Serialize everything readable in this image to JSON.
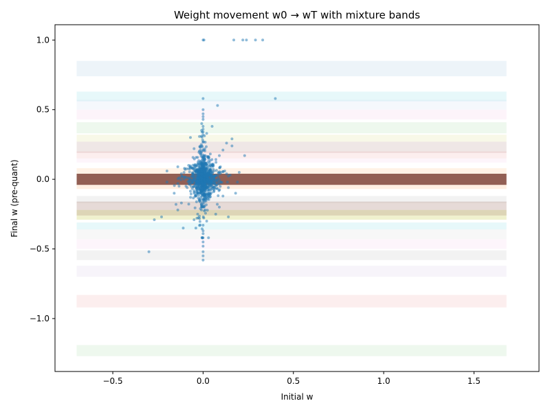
{
  "chart_data": {
    "type": "scatter",
    "title": "Weight movement w0 → wT with mixture bands",
    "xlabel": "Initial w",
    "ylabel": "Final w (pre-quant)",
    "xlim": [
      -0.82,
      1.86
    ],
    "ylim": [
      -1.38,
      1.11
    ],
    "xticks": [
      -0.5,
      0.0,
      0.5,
      1.0,
      1.5
    ],
    "yticks": [
      -1.0,
      -0.5,
      0.0,
      0.5,
      1.0
    ],
    "xtick_labels": [
      "−0.5",
      "0.0",
      "0.5",
      "1.0",
      "1.5"
    ],
    "ytick_labels": [
      "−1.0",
      "−0.5",
      "0.0",
      "0.5",
      "1.0"
    ],
    "grid": false,
    "point_color": "#1f77b4",
    "band_x_range": [
      -0.7,
      1.68
    ],
    "bands": [
      {
        "y0": 0.74,
        "y1": 0.85,
        "color": "#1f77b4",
        "alpha": 0.08
      },
      {
        "y0": 0.56,
        "y1": 0.63,
        "color": "#17becf",
        "alpha": 0.1
      },
      {
        "y0": 0.5,
        "y1": 0.57,
        "color": "#aec7e8",
        "alpha": 0.12
      },
      {
        "y0": 0.43,
        "y1": 0.5,
        "color": "#e377c2",
        "alpha": 0.08
      },
      {
        "y0": 0.33,
        "y1": 0.41,
        "color": "#2ca02c",
        "alpha": 0.08
      },
      {
        "y0": 0.27,
        "y1": 0.32,
        "color": "#bcbd22",
        "alpha": 0.1
      },
      {
        "y0": 0.19,
        "y1": 0.27,
        "color": "#8c564b",
        "alpha": 0.14
      },
      {
        "y0": 0.15,
        "y1": 0.2,
        "color": "#d62728",
        "alpha": 0.08
      },
      {
        "y0": 0.12,
        "y1": 0.15,
        "color": "#e377c2",
        "alpha": 0.07
      },
      {
        "y0": 0.04,
        "y1": 0.08,
        "color": "#ff7f0e",
        "alpha": 0.1
      },
      {
        "y0": -0.04,
        "y1": 0.04,
        "color": "#8c564b",
        "alpha": 0.95
      },
      {
        "y0": -0.07,
        "y1": -0.04,
        "color": "#ff7f0e",
        "alpha": 0.12
      },
      {
        "y0": -0.17,
        "y1": -0.12,
        "color": "#7f7f7f",
        "alpha": 0.1
      },
      {
        "y0": -0.22,
        "y1": -0.16,
        "color": "#8c564b",
        "alpha": 0.22
      },
      {
        "y0": -0.29,
        "y1": -0.22,
        "color": "#bcbd22",
        "alpha": 0.22
      },
      {
        "y0": -0.26,
        "y1": -0.22,
        "color": "#8c564b",
        "alpha": 0.18
      },
      {
        "y0": -0.36,
        "y1": -0.31,
        "color": "#17becf",
        "alpha": 0.1
      },
      {
        "y0": -0.43,
        "y1": -0.36,
        "color": "#7f7f7f",
        "alpha": 0.06
      },
      {
        "y0": -0.5,
        "y1": -0.43,
        "color": "#e377c2",
        "alpha": 0.07
      },
      {
        "y0": -0.58,
        "y1": -0.51,
        "color": "#7f7f7f",
        "alpha": 0.1
      },
      {
        "y0": -0.7,
        "y1": -0.62,
        "color": "#9467bd",
        "alpha": 0.07
      },
      {
        "y0": -0.92,
        "y1": -0.83,
        "color": "#d62728",
        "alpha": 0.08
      },
      {
        "y0": -1.27,
        "y1": -1.19,
        "color": "#2ca02c",
        "alpha": 0.08
      }
    ],
    "points": [
      [
        0.0,
        1.0
      ],
      [
        0.005,
        1.0
      ],
      [
        0.17,
        1.0
      ],
      [
        0.22,
        1.0
      ],
      [
        0.24,
        1.0
      ],
      [
        0.29,
        1.0
      ],
      [
        0.33,
        1.0
      ],
      [
        0.4,
        0.58
      ],
      [
        0.0,
        0.58
      ],
      [
        0.08,
        0.53
      ],
      [
        0.0,
        0.5
      ],
      [
        0.0,
        0.47
      ],
      [
        0.0,
        0.45
      ],
      [
        0.0,
        0.43
      ],
      [
        0.05,
        0.38
      ],
      [
        0.0,
        0.38
      ],
      [
        0.0,
        0.36
      ],
      [
        0.0,
        0.34
      ],
      [
        0.0,
        0.32
      ],
      [
        0.16,
        0.29
      ],
      [
        0.13,
        0.26
      ],
      [
        0.16,
        0.24
      ],
      [
        0.23,
        0.17
      ],
      [
        0.11,
        0.21
      ],
      [
        0.09,
        0.17
      ],
      [
        -0.07,
        0.3
      ],
      [
        -0.05,
        0.22
      ],
      [
        -0.08,
        0.1
      ],
      [
        -0.14,
        0.09
      ],
      [
        -0.2,
        0.06
      ],
      [
        -0.12,
        0.04
      ],
      [
        0.12,
        0.06
      ],
      [
        0.2,
        0.05
      ],
      [
        0.15,
        0.03
      ],
      [
        0.19,
        -0.02
      ],
      [
        0.14,
        -0.06
      ],
      [
        0.18,
        -0.1
      ],
      [
        0.11,
        -0.12
      ],
      [
        0.09,
        -0.2
      ],
      [
        0.07,
        -0.25
      ],
      [
        0.14,
        -0.27
      ],
      [
        -0.12,
        -0.17
      ],
      [
        -0.15,
        -0.18
      ],
      [
        -0.16,
        -0.1
      ],
      [
        -0.14,
        -0.03
      ],
      [
        -0.2,
        -0.02
      ],
      [
        -0.23,
        -0.27
      ],
      [
        -0.27,
        -0.29
      ],
      [
        -0.14,
        -0.22
      ],
      [
        -0.03,
        -0.25
      ],
      [
        -0.05,
        -0.29
      ],
      [
        -0.04,
        -0.35
      ],
      [
        -0.11,
        -0.35
      ],
      [
        0.0,
        -0.33
      ],
      [
        0.0,
        -0.37
      ],
      [
        0.0,
        -0.39
      ],
      [
        0.0,
        -0.42
      ],
      [
        0.0,
        -0.45
      ],
      [
        0.0,
        -0.48
      ],
      [
        0.0,
        -0.52
      ],
      [
        0.0,
        -0.55
      ],
      [
        0.0,
        -0.58
      ],
      [
        -0.3,
        -0.52
      ],
      [
        0.03,
        -0.42
      ],
      [
        0.02,
        -0.3
      ]
    ]
  }
}
